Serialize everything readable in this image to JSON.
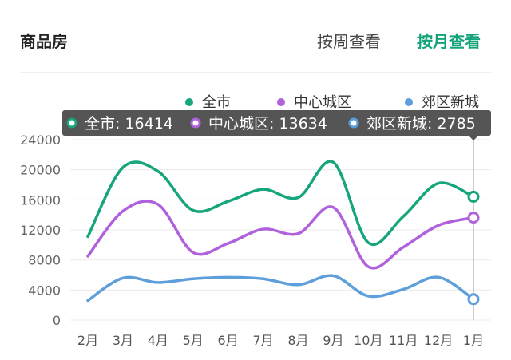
{
  "header": {
    "title": "商品房",
    "tab_week": "按周查看",
    "tab_month": "按月查看"
  },
  "tooltip": {
    "items": [
      {
        "label": "全市: 16414"
      },
      {
        "label": "中心城区: 13634"
      },
      {
        "label": "郊区新城: 2785"
      }
    ]
  },
  "colors": [
    "#16a57c",
    "#b062dd",
    "#5d9edb"
  ],
  "chart_data": {
    "type": "line",
    "title": "商品房",
    "categories": [
      "2月",
      "3月",
      "4月",
      "5月",
      "6月",
      "7月",
      "8月",
      "9月",
      "10月",
      "11月",
      "12月",
      "1月"
    ],
    "yticks": [
      0,
      4000,
      8000,
      12000,
      16000,
      20000,
      24000
    ],
    "ylim": [
      0,
      24000
    ],
    "grid": true,
    "legend": "top",
    "series": [
      {
        "name": "全市",
        "values": [
          11100,
          20300,
          19800,
          14600,
          15800,
          17400,
          16300,
          21000,
          10300,
          13800,
          18200,
          16414
        ]
      },
      {
        "name": "中心城区",
        "values": [
          8500,
          14500,
          15400,
          9000,
          10200,
          12100,
          11500,
          15000,
          7100,
          9700,
          12600,
          13634
        ]
      },
      {
        "name": "郊区新城",
        "values": [
          2600,
          5600,
          5000,
          5500,
          5700,
          5500,
          4700,
          5900,
          3200,
          4100,
          5700,
          2785
        ]
      }
    ]
  }
}
